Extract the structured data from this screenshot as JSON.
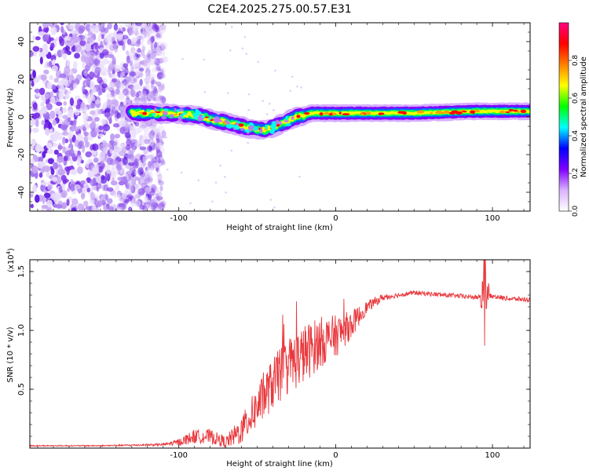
{
  "chart_data": [
    {
      "type": "heatmap",
      "title": "C2E4.2025.275.00.57.E31",
      "xlabel": "Height of straight line (km)",
      "ylabel": "Frequency (Hz)",
      "xlim": [
        -195,
        124
      ],
      "ylim": [
        -50,
        50
      ],
      "x_ticks": [
        -100,
        0,
        100
      ],
      "y_ticks": [
        -40,
        -20,
        0,
        20,
        40
      ],
      "colorbar": {
        "label": "Normalized spectral amplitude",
        "range": [
          0.0,
          1.0
        ],
        "ticks": [
          "0.0",
          "0.2",
          "0.4",
          "0.6",
          "0.8"
        ],
        "colors": [
          "#ffffff",
          "#d9b3ff",
          "#8000ff",
          "#0000ff",
          "#00ffff",
          "#00ff00",
          "#ffff00",
          "#ff8000",
          "#ff0000",
          "#ff0080"
        ]
      },
      "ridge": {
        "x": [
          -130,
          -110,
          -90,
          -75,
          -65,
          -55,
          -45,
          -38,
          -30,
          -25,
          -15,
          0,
          20,
          50,
          90,
          124
        ],
        "freq_hz": [
          2,
          2,
          1,
          -2,
          -4,
          -6,
          -7,
          -5,
          -2,
          0,
          2,
          2,
          2,
          2,
          3,
          3
        ]
      },
      "noise_region_x": [
        -195,
        -110
      ]
    },
    {
      "type": "line",
      "xlabel": "Height of straight line (km)",
      "ylabel": "SNR (10 * v/v)",
      "y_multiplier": "(x10",
      "y_multiplier_exp": "4",
      "y_multiplier_close": ")",
      "xlim": [
        -195,
        124
      ],
      "ylim": [
        0,
        1.6
      ],
      "x_ticks": [
        -100,
        0,
        100
      ],
      "y_ticks": [
        "0.5",
        "1.0",
        "1.5"
      ],
      "series": [
        {
          "name": "SNR",
          "color": "#e8383d",
          "x": [
            -195,
            -150,
            -110,
            -100,
            -90,
            -80,
            -70,
            -60,
            -50,
            -40,
            -30,
            -20,
            -10,
            0,
            10,
            20,
            30,
            40,
            50,
            60,
            70,
            80,
            90,
            95,
            100,
            110,
            124
          ],
          "y": [
            0.02,
            0.02,
            0.03,
            0.05,
            0.1,
            0.1,
            0.05,
            0.15,
            0.35,
            0.55,
            0.7,
            0.8,
            0.9,
            0.95,
            1.05,
            1.2,
            1.28,
            1.3,
            1.32,
            1.31,
            1.3,
            1.29,
            1.28,
            1.3,
            1.29,
            1.27,
            1.26
          ],
          "jitter": [
            0.005,
            0.005,
            0.01,
            0.03,
            0.06,
            0.06,
            0.05,
            0.12,
            0.18,
            0.22,
            0.25,
            0.25,
            0.22,
            0.18,
            0.12,
            0.05,
            0.03,
            0.02,
            0.02,
            0.02,
            0.02,
            0.02,
            0.02,
            0.02,
            0.02,
            0.02,
            0.02
          ]
        }
      ],
      "spike": {
        "x": 95,
        "max": 1.62,
        "min": 0.87
      }
    }
  ]
}
